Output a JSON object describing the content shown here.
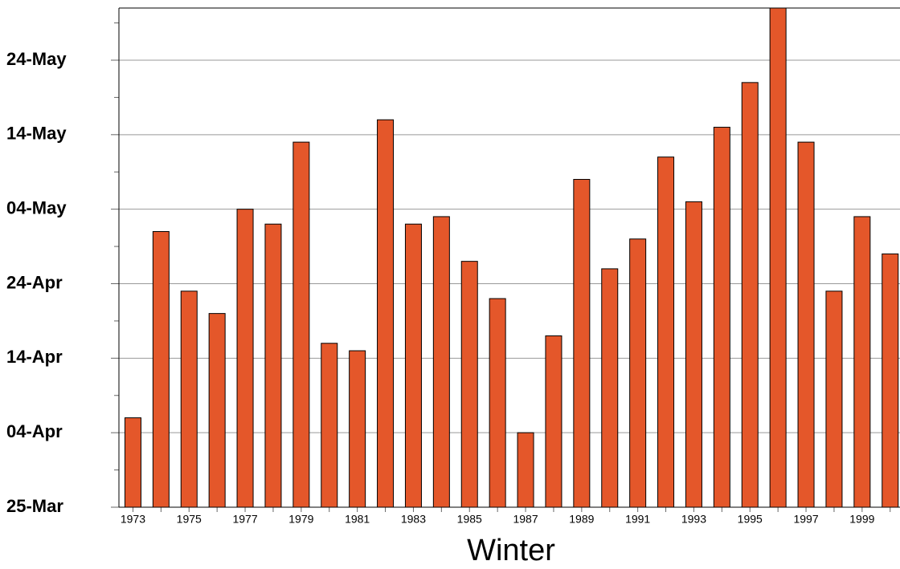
{
  "chart_data": {
    "type": "bar",
    "x_label": "Winter",
    "categories": [
      "1973",
      null,
      "1975",
      null,
      "1977",
      null,
      "1979",
      null,
      "1981",
      null,
      "1983",
      null,
      "1985",
      null,
      "1987",
      null,
      "1989",
      null,
      "1991",
      null,
      "1993",
      null,
      "1995",
      null,
      "1997",
      null,
      "1999",
      null
    ],
    "values": [
      12,
      37,
      29,
      26,
      40,
      38,
      49,
      22,
      21,
      52,
      38,
      39,
      33,
      28,
      10,
      23,
      44,
      32,
      36,
      47,
      41,
      51,
      57,
      67,
      49,
      29,
      39,
      34
    ],
    "color": "#e4572a",
    "ylim": [
      0,
      67
    ],
    "yticks": [
      {
        "value": 0,
        "label": "25-Mar"
      },
      {
        "value": 10,
        "label": "04-Apr"
      },
      {
        "value": 20,
        "label": "14-Apr"
      },
      {
        "value": 30,
        "label": "24-Apr"
      },
      {
        "value": 40,
        "label": "04-May"
      },
      {
        "value": 50,
        "label": "14-May"
      },
      {
        "value": 60,
        "label": "24-May"
      }
    ],
    "minor_yticks": [
      5,
      15,
      25,
      35,
      45,
      55,
      65
    ],
    "grid": true
  }
}
